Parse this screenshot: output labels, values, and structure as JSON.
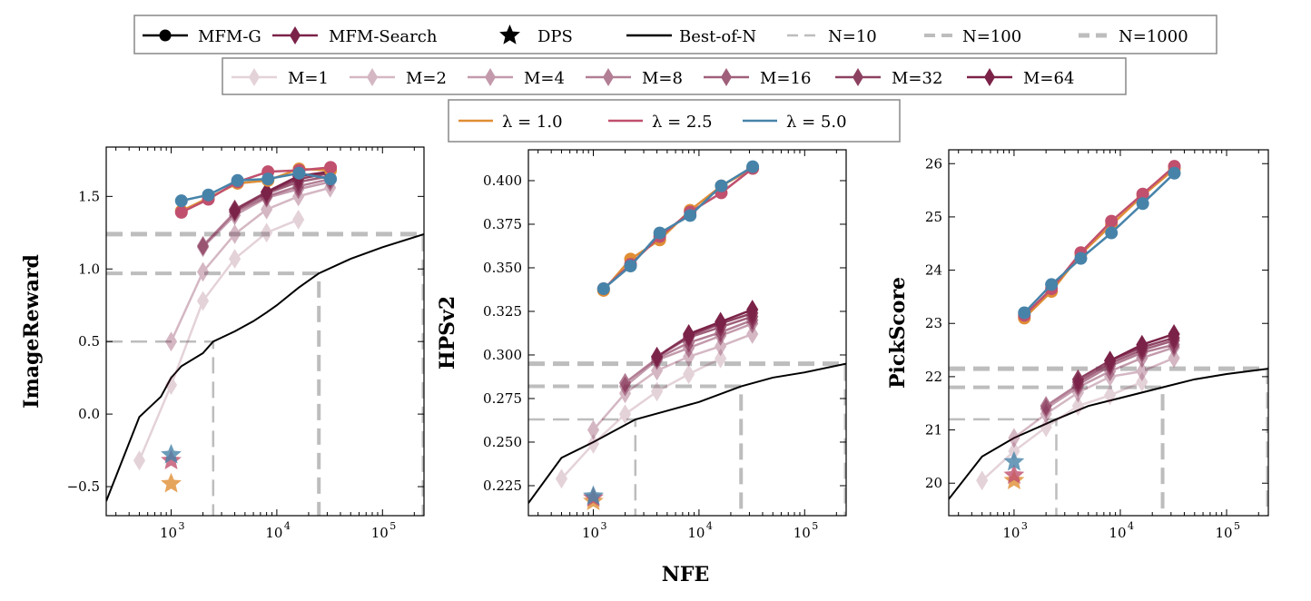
{
  "colors": {
    "mfm_search": "#7b2248",
    "lambda_1.0": "#e08e35",
    "lambda_2.5": "#c0506e",
    "lambda_5.0": "#4783a9",
    "best_of_n": "#000000",
    "reference": "#bdbdbd"
  },
  "legend": {
    "row1": [
      "MFM-G",
      "MFM-Search",
      "DPS",
      "Best-of-N",
      "N=10",
      "N=100",
      "N=1000"
    ],
    "row2": [
      "M=1",
      "M=2",
      "M=4",
      "M=8",
      "M=16",
      "M=32",
      "M=64"
    ],
    "row3": [
      "λ = 1.0",
      "λ = 2.5",
      "λ = 5.0"
    ]
  },
  "chart_data": [
    {
      "type": "line",
      "ylabel": "ImageReward",
      "xlabel": "NFE",
      "xscale": "log",
      "xlim": [
        243,
        247000
      ],
      "ylim": [
        -0.7,
        1.84
      ],
      "xticks": [
        "10^3",
        "10^4",
        "10^5"
      ],
      "yticks": [
        "−0.5",
        "0.0",
        "0.5",
        "1.0",
        "1.5"
      ],
      "ytick_values": [
        -0.5,
        0.0,
        0.5,
        1.0,
        1.5
      ],
      "mfm_g": {
        "x": [
          1250,
          2250,
          4250,
          8250,
          16250,
          32250
        ],
        "series": [
          {
            "name": "λ = 1.0",
            "values": [
              1.4,
              1.49,
              1.59,
              1.61,
              1.69,
              1.68
            ]
          },
          {
            "name": "λ = 2.5",
            "values": [
              1.39,
              1.48,
              1.6,
              1.67,
              1.68,
              1.7
            ]
          },
          {
            "name": "λ = 5.0",
            "values": [
              1.47,
              1.51,
              1.61,
              1.62,
              1.66,
              1.62
            ]
          }
        ]
      },
      "mfm_search": [
        {
          "name": "M=1",
          "x": [
            500,
            1000,
            2000,
            4000,
            8000,
            16000
          ],
          "values": [
            -0.32,
            0.2,
            0.78,
            1.07,
            1.25,
            1.34
          ]
        },
        {
          "name": "M=2",
          "x": [
            1000,
            2000,
            4000,
            8000,
            16000,
            32000
          ],
          "values": [
            0.5,
            0.98,
            1.24,
            1.41,
            1.5,
            1.56
          ]
        },
        {
          "name": "M=4",
          "x": [
            2000,
            4000,
            8000,
            16000,
            32000
          ],
          "values": [
            1.15,
            1.37,
            1.49,
            1.55,
            1.6
          ]
        },
        {
          "name": "M=8",
          "x": [
            2000,
            4000,
            8000,
            16000,
            32000
          ],
          "values": [
            1.16,
            1.39,
            1.5,
            1.57,
            1.62
          ]
        },
        {
          "name": "M=16",
          "x": [
            4000,
            8000,
            16000,
            32000
          ],
          "values": [
            1.4,
            1.52,
            1.6,
            1.64
          ]
        },
        {
          "name": "M=32",
          "x": [
            4000,
            8000,
            16000,
            32000
          ],
          "values": [
            1.41,
            1.53,
            1.62,
            1.66
          ]
        },
        {
          "name": "M=64",
          "x": [
            8000,
            16000,
            32000
          ],
          "values": [
            1.53,
            1.64,
            1.67
          ]
        }
      ],
      "dps": {
        "x": 1000,
        "values": {
          "λ = 1.0": -0.48,
          "λ = 2.5": -0.32,
          "λ = 5.0": -0.28
        }
      },
      "best_of_n": {
        "x": [
          243,
          500,
          800,
          1000,
          1250,
          2000,
          2500,
          4000,
          6000,
          8000,
          10000,
          16000,
          25000,
          50000,
          100000,
          247000
        ],
        "values": [
          -0.6,
          -0.02,
          0.12,
          0.25,
          0.33,
          0.42,
          0.5,
          0.57,
          0.64,
          0.7,
          0.75,
          0.87,
          0.97,
          1.07,
          1.15,
          1.24
        ]
      },
      "reference": [
        {
          "name": "N=10",
          "x": 2500,
          "y": 0.5
        },
        {
          "name": "N=100",
          "x": 25000,
          "y": 0.97
        },
        {
          "name": "N=1000",
          "x": 247000,
          "y": 1.24
        }
      ]
    },
    {
      "type": "line",
      "ylabel": "HPSv2",
      "xlabel": "NFE",
      "xscale": "log",
      "xlim": [
        243,
        247000
      ],
      "ylim": [
        0.2078,
        0.4177
      ],
      "xticks": [
        "10^3",
        "10^4",
        "10^5"
      ],
      "yticks": [
        "0.225",
        "0.250",
        "0.275",
        "0.300",
        "0.325",
        "0.350",
        "0.375",
        "0.400"
      ],
      "ytick_values": [
        0.225,
        0.25,
        0.275,
        0.3,
        0.325,
        0.35,
        0.375,
        0.4
      ],
      "mfm_g": {
        "x": [
          1250,
          2250,
          4250,
          8250,
          16250,
          32250
        ],
        "series": [
          {
            "name": "λ = 1.0",
            "values": [
              0.337,
              0.355,
              0.366,
              0.383,
              0.397,
              0.407
            ]
          },
          {
            "name": "λ = 2.5",
            "values": [
              0.338,
              0.352,
              0.368,
              0.382,
              0.393,
              0.407
            ]
          },
          {
            "name": "λ = 5.0",
            "values": [
              0.338,
              0.351,
              0.37,
              0.38,
              0.397,
              0.408
            ]
          }
        ]
      },
      "mfm_search": [
        {
          "name": "M=1",
          "x": [
            500,
            1000,
            2000,
            4000,
            8000,
            16000
          ],
          "values": [
            0.229,
            0.249,
            0.266,
            0.279,
            0.289,
            0.298
          ]
        },
        {
          "name": "M=2",
          "x": [
            1000,
            2000,
            4000,
            8000,
            16000,
            32000
          ],
          "values": [
            0.257,
            0.278,
            0.291,
            0.299,
            0.305,
            0.312
          ]
        },
        {
          "name": "M=4",
          "x": [
            2000,
            4000,
            8000,
            16000,
            32000
          ],
          "values": [
            0.282,
            0.297,
            0.304,
            0.311,
            0.318
          ]
        },
        {
          "name": "M=8",
          "x": [
            2000,
            4000,
            8000,
            16000,
            32000
          ],
          "values": [
            0.284,
            0.298,
            0.307,
            0.313,
            0.32
          ]
        },
        {
          "name": "M=16",
          "x": [
            4000,
            8000,
            16000,
            32000
          ],
          "values": [
            0.299,
            0.31,
            0.316,
            0.322
          ]
        },
        {
          "name": "M=32",
          "x": [
            4000,
            8000,
            16000,
            32000
          ],
          "values": [
            0.299,
            0.311,
            0.318,
            0.324
          ]
        },
        {
          "name": "M=64",
          "x": [
            8000,
            16000,
            32000
          ],
          "values": [
            0.312,
            0.319,
            0.326
          ]
        }
      ],
      "dps": {
        "x": 1000,
        "values": {
          "λ = 1.0": 0.216,
          "λ = 2.5": 0.218,
          "λ = 5.0": 0.219
        }
      },
      "best_of_n": {
        "x": [
          243,
          500,
          1000,
          2500,
          5000,
          10000,
          25000,
          50000,
          100000,
          247000
        ],
        "values": [
          0.215,
          0.241,
          0.25,
          0.263,
          0.268,
          0.273,
          0.282,
          0.287,
          0.29,
          0.295
        ]
      },
      "reference": [
        {
          "name": "N=10",
          "x": 2500,
          "y": 0.263
        },
        {
          "name": "N=100",
          "x": 25000,
          "y": 0.282
        },
        {
          "name": "N=1000",
          "x": 247000,
          "y": 0.295
        }
      ]
    },
    {
      "type": "line",
      "ylabel": "PickScore",
      "xlabel": "NFE",
      "xscale": "log",
      "xlim": [
        243,
        247000
      ],
      "ylim": [
        19.39,
        26.26
      ],
      "xticks": [
        "10^3",
        "10^4",
        "10^5"
      ],
      "yticks": [
        "20",
        "21",
        "22",
        "23",
        "24",
        "25",
        "26"
      ],
      "ytick_values": [
        20,
        21,
        22,
        23,
        24,
        25,
        26
      ],
      "mfm_g": {
        "x": [
          1250,
          2250,
          4250,
          8250,
          16250,
          32250
        ],
        "series": [
          {
            "name": "λ = 1.0",
            "values": [
              23.1,
              23.6,
              24.3,
              24.85,
              25.4,
              25.9
            ]
          },
          {
            "name": "λ = 2.5",
            "values": [
              23.15,
              23.65,
              24.33,
              24.92,
              25.43,
              25.95
            ]
          },
          {
            "name": "λ = 5.0",
            "values": [
              23.2,
              23.73,
              24.22,
              24.7,
              25.25,
              25.82
            ]
          }
        ]
      },
      "mfm_search": [
        {
          "name": "M=1",
          "x": [
            500,
            1000,
            2000,
            4000,
            8000,
            16000
          ],
          "values": [
            20.05,
            20.6,
            21.05,
            21.45,
            21.65,
            21.9
          ]
        },
        {
          "name": "M=2",
          "x": [
            1000,
            2000,
            4000,
            8000,
            16000,
            32000
          ],
          "values": [
            20.85,
            21.3,
            21.7,
            22.0,
            22.1,
            22.35
          ]
        },
        {
          "name": "M=4",
          "x": [
            2000,
            4000,
            8000,
            16000,
            32000
          ],
          "values": [
            21.4,
            21.8,
            22.1,
            22.35,
            22.55
          ]
        },
        {
          "name": "M=8",
          "x": [
            2000,
            4000,
            8000,
            16000,
            32000
          ],
          "values": [
            21.45,
            21.85,
            22.2,
            22.45,
            22.6
          ]
        },
        {
          "name": "M=16",
          "x": [
            4000,
            8000,
            16000,
            32000
          ],
          "values": [
            21.9,
            22.25,
            22.5,
            22.68
          ]
        },
        {
          "name": "M=32",
          "x": [
            4000,
            8000,
            16000,
            32000
          ],
          "values": [
            21.95,
            22.3,
            22.55,
            22.73
          ]
        },
        {
          "name": "M=64",
          "x": [
            8000,
            16000,
            32000
          ],
          "values": [
            22.3,
            22.6,
            22.8
          ]
        }
      ],
      "dps": {
        "x": 1000,
        "values": {
          "λ = 1.0": 20.05,
          "λ = 2.5": 20.15,
          "λ = 5.0": 20.4
        }
      },
      "best_of_n": {
        "x": [
          243,
          500,
          1000,
          2500,
          5000,
          10000,
          25000,
          50000,
          100000,
          247000
        ],
        "values": [
          19.7,
          20.5,
          20.85,
          21.2,
          21.45,
          21.6,
          21.8,
          21.95,
          22.05,
          22.15
        ]
      },
      "reference": [
        {
          "name": "N=10",
          "x": 2500,
          "y": 21.2
        },
        {
          "name": "N=100",
          "x": 25000,
          "y": 21.8
        },
        {
          "name": "N=1000",
          "x": 247000,
          "y": 22.15
        }
      ]
    }
  ],
  "xlabel": "NFE"
}
